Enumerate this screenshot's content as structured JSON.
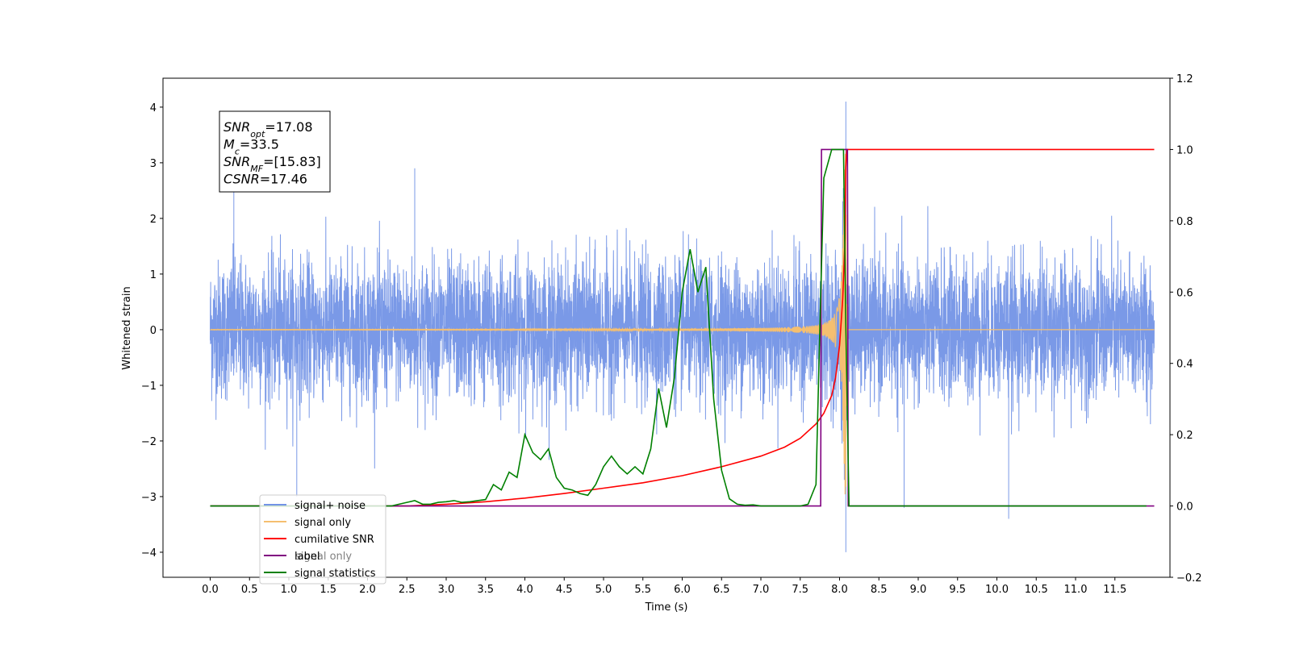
{
  "chart_data": {
    "type": "line",
    "xlabel": "Time (s)",
    "ylabel": "Whitened strain",
    "xlim": [
      -0.6,
      12.2
    ],
    "ylim": [
      -4.45,
      4.52
    ],
    "y2lim": [
      -0.2,
      1.2
    ],
    "x_ticks": [
      "0.0",
      "0.5",
      "1.0",
      "1.5",
      "2.0",
      "2.5",
      "3.0",
      "3.5",
      "4.0",
      "4.5",
      "5.0",
      "5.5",
      "6.0",
      "6.5",
      "7.0",
      "7.5",
      "8.0",
      "8.5",
      "9.0",
      "9.5",
      "10.0",
      "10.5",
      "11.0",
      "11.5"
    ],
    "y_ticks": [
      4,
      3,
      2,
      1,
      0,
      -1,
      -2,
      -3,
      -4
    ],
    "y2_ticks": [
      "1.2",
      "1.0",
      "0.8",
      "0.6",
      "0.4",
      "0.2",
      "0.0",
      "−0.2"
    ],
    "legend": {
      "location": "lower-left",
      "entries": [
        {
          "label": "signal+ noise",
          "color": "#7393e6"
        },
        {
          "label": "signal only",
          "color": "#f5bf70"
        },
        {
          "label": "cumilative SNR",
          "color": "#ff0000"
        },
        {
          "label": "label",
          "color": "#800080"
        },
        {
          "label": "signal statistics",
          "color": "#008000"
        }
      ],
      "obscured_text": "signal only"
    },
    "annotation": {
      "lines": [
        {
          "sym": "SNR",
          "sub": "opt",
          "rest": "=17.08"
        },
        {
          "sym": "M",
          "sub": "c",
          "rest": "=33.5"
        },
        {
          "sym": "SNR",
          "sub": "MF",
          "rest": "=[15.83]"
        },
        {
          "sym": "CSNR",
          "sub": "",
          "rest": "=17.46"
        }
      ]
    },
    "series": [
      {
        "name": "signal+ noise",
        "axis": "left",
        "color": "#7393e6",
        "kind": "noise",
        "x_range": [
          0.0,
          12.0
        ],
        "typical_peak": 1.6,
        "max": 4.1,
        "min": -4.0,
        "extreme_points": [
          [
            8.08,
            4.1
          ],
          [
            8.08,
            -4.0
          ],
          [
            8.82,
            -3.2
          ],
          [
            10.15,
            -3.4
          ],
          [
            1.1,
            -3.0
          ],
          [
            0.3,
            2.7
          ],
          [
            2.6,
            2.9
          ]
        ]
      },
      {
        "name": "signal only",
        "axis": "left",
        "color": "#f5bf70",
        "kind": "chirp",
        "x_range": [
          0.0,
          12.0
        ],
        "merger_time": 8.08,
        "peak_amplitude": 3.6
      },
      {
        "name": "cumilative SNR",
        "axis": "right",
        "x": [
          0.0,
          2.5,
          3.0,
          3.5,
          4.0,
          4.5,
          5.0,
          5.5,
          6.0,
          6.5,
          7.0,
          7.3,
          7.5,
          7.7,
          7.8,
          7.9,
          7.95,
          8.0,
          8.04,
          8.07,
          8.08,
          8.09,
          12.0
        ],
        "values": [
          0.0,
          0.0,
          0.005,
          0.012,
          0.022,
          0.035,
          0.05,
          0.065,
          0.085,
          0.11,
          0.14,
          0.165,
          0.19,
          0.23,
          0.26,
          0.31,
          0.36,
          0.45,
          0.58,
          0.75,
          0.95,
          1.0,
          1.0
        ],
        "color": "#ff0000"
      },
      {
        "name": "label",
        "axis": "right",
        "x": [
          0.0,
          7.76,
          7.77,
          8.1,
          8.11,
          12.0
        ],
        "values": [
          0.0,
          0.0,
          1.0,
          1.0,
          0.0,
          0.0
        ],
        "color": "#800080"
      },
      {
        "name": "signal statistics",
        "axis": "right",
        "x": [
          0.0,
          2.3,
          2.4,
          2.5,
          2.6,
          2.7,
          2.8,
          2.9,
          3.0,
          3.1,
          3.2,
          3.3,
          3.4,
          3.5,
          3.6,
          3.7,
          3.8,
          3.9,
          4.0,
          4.1,
          4.2,
          4.3,
          4.4,
          4.5,
          4.6,
          4.7,
          4.8,
          4.9,
          5.0,
          5.1,
          5.2,
          5.3,
          5.4,
          5.5,
          5.6,
          5.7,
          5.8,
          5.9,
          6.0,
          6.1,
          6.2,
          6.3,
          6.4,
          6.5,
          6.6,
          6.7,
          6.8,
          6.9,
          7.0,
          7.2,
          7.4,
          7.5,
          7.6,
          7.7,
          7.75,
          7.8,
          7.85,
          7.9,
          8.0,
          8.05,
          8.08,
          8.12,
          8.13,
          11.9
        ],
        "values": [
          0.0,
          0.0,
          0.005,
          0.01,
          0.015,
          0.005,
          0.005,
          0.01,
          0.012,
          0.015,
          0.01,
          0.012,
          0.015,
          0.018,
          0.06,
          0.045,
          0.095,
          0.08,
          0.2,
          0.15,
          0.13,
          0.16,
          0.08,
          0.05,
          0.045,
          0.035,
          0.03,
          0.06,
          0.11,
          0.14,
          0.11,
          0.09,
          0.11,
          0.09,
          0.16,
          0.33,
          0.22,
          0.36,
          0.6,
          0.72,
          0.6,
          0.67,
          0.3,
          0.1,
          0.02,
          0.005,
          0.002,
          0.003,
          0.0,
          0.0,
          0.0,
          0.0,
          0.005,
          0.06,
          0.5,
          0.92,
          0.96,
          1.0,
          1.0,
          1.0,
          0.5,
          0.0,
          0.0,
          0.0
        ],
        "color": "#008000"
      }
    ]
  }
}
